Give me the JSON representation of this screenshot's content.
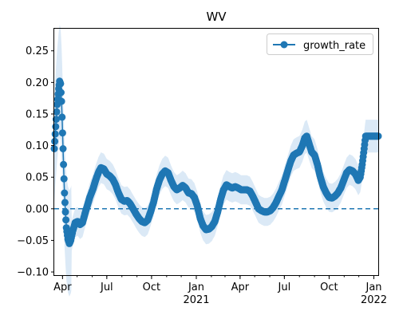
{
  "chart_data": {
    "type": "line",
    "title": "WV",
    "xlabel": "",
    "ylabel": "",
    "x_start": "2020-03-15",
    "x_end": "2022-01-10",
    "ylim": [
      -0.105,
      0.285
    ],
    "y_ticks": [
      -0.1,
      -0.05,
      0.0,
      0.05,
      0.1,
      0.15,
      0.2,
      0.25
    ],
    "y_tick_labels": [
      "−0.10",
      "−0.05",
      "0.00",
      "0.05",
      "0.10",
      "0.15",
      "0.20",
      "0.25"
    ],
    "x_ticks": [
      {
        "date": "2020-04-01",
        "label": "Apr",
        "sublabel": ""
      },
      {
        "date": "2020-07-01",
        "label": "Jul",
        "sublabel": ""
      },
      {
        "date": "2020-10-01",
        "label": "Oct",
        "sublabel": ""
      },
      {
        "date": "2021-01-01",
        "label": "Jan",
        "sublabel": "2021"
      },
      {
        "date": "2021-04-01",
        "label": "Apr",
        "sublabel": ""
      },
      {
        "date": "2021-07-01",
        "label": "Jul",
        "sublabel": ""
      },
      {
        "date": "2021-10-01",
        "label": "Oct",
        "sublabel": ""
      },
      {
        "date": "2022-01-01",
        "label": "Jan",
        "sublabel": "2022"
      }
    ],
    "reference_line": 0.0,
    "legend": {
      "placement": "top-right",
      "label": "growth_rate"
    },
    "colors": {
      "series": "#1f77b4",
      "band": "#cfe2f3",
      "reference": "#1f77b4"
    },
    "series": [
      {
        "name": "growth_rate",
        "points": [
          [
            "2020-03-15",
            0.095
          ],
          [
            "2020-03-18",
            0.13
          ],
          [
            "2020-03-21",
            0.165
          ],
          [
            "2020-03-24",
            0.19
          ],
          [
            "2020-03-26",
            0.202
          ],
          [
            "2020-03-28",
            0.198
          ],
          [
            "2020-03-30",
            0.17
          ],
          [
            "2020-04-01",
            0.12
          ],
          [
            "2020-04-03",
            0.07
          ],
          [
            "2020-04-05",
            0.025
          ],
          [
            "2020-04-07",
            -0.005
          ],
          [
            "2020-04-09",
            -0.03
          ],
          [
            "2020-04-12",
            -0.048
          ],
          [
            "2020-04-15",
            -0.055
          ],
          [
            "2020-04-18",
            -0.05
          ],
          [
            "2020-04-22",
            -0.035
          ],
          [
            "2020-04-27",
            -0.022
          ],
          [
            "2020-05-02",
            -0.02
          ],
          [
            "2020-05-07",
            -0.025
          ],
          [
            "2020-05-12",
            -0.022
          ],
          [
            "2020-05-17",
            -0.008
          ],
          [
            "2020-05-22",
            0.005
          ],
          [
            "2020-05-27",
            0.018
          ],
          [
            "2020-06-02",
            0.03
          ],
          [
            "2020-06-08",
            0.045
          ],
          [
            "2020-06-14",
            0.058
          ],
          [
            "2020-06-19",
            0.065
          ],
          [
            "2020-06-25",
            0.063
          ],
          [
            "2020-07-01",
            0.055
          ],
          [
            "2020-07-07",
            0.052
          ],
          [
            "2020-07-13",
            0.047
          ],
          [
            "2020-07-19",
            0.038
          ],
          [
            "2020-07-25",
            0.025
          ],
          [
            "2020-07-31",
            0.015
          ],
          [
            "2020-08-06",
            0.012
          ],
          [
            "2020-08-12",
            0.013
          ],
          [
            "2020-08-18",
            0.008
          ],
          [
            "2020-08-24",
            0.0
          ],
          [
            "2020-08-30",
            -0.008
          ],
          [
            "2020-09-05",
            -0.015
          ],
          [
            "2020-09-11",
            -0.02
          ],
          [
            "2020-09-17",
            -0.022
          ],
          [
            "2020-09-23",
            -0.018
          ],
          [
            "2020-09-29",
            -0.005
          ],
          [
            "2020-10-05",
            0.01
          ],
          [
            "2020-10-11",
            0.03
          ],
          [
            "2020-10-17",
            0.045
          ],
          [
            "2020-10-23",
            0.055
          ],
          [
            "2020-10-29",
            0.06
          ],
          [
            "2020-11-04",
            0.057
          ],
          [
            "2020-11-10",
            0.045
          ],
          [
            "2020-11-16",
            0.035
          ],
          [
            "2020-11-22",
            0.03
          ],
          [
            "2020-11-28",
            0.033
          ],
          [
            "2020-12-04",
            0.037
          ],
          [
            "2020-12-10",
            0.033
          ],
          [
            "2020-12-16",
            0.025
          ],
          [
            "2020-12-22",
            0.024
          ],
          [
            "2020-12-28",
            0.018
          ],
          [
            "2021-01-03",
            0.005
          ],
          [
            "2021-01-09",
            -0.015
          ],
          [
            "2021-01-15",
            -0.027
          ],
          [
            "2021-01-21",
            -0.033
          ],
          [
            "2021-01-27",
            -0.032
          ],
          [
            "2021-02-02",
            -0.028
          ],
          [
            "2021-02-08",
            -0.02
          ],
          [
            "2021-02-14",
            -0.005
          ],
          [
            "2021-02-20",
            0.015
          ],
          [
            "2021-02-26",
            0.03
          ],
          [
            "2021-03-04",
            0.038
          ],
          [
            "2021-03-10",
            0.035
          ],
          [
            "2021-03-16",
            0.033
          ],
          [
            "2021-03-22",
            0.035
          ],
          [
            "2021-03-28",
            0.033
          ],
          [
            "2021-04-03",
            0.03
          ],
          [
            "2021-04-09",
            0.03
          ],
          [
            "2021-04-15",
            0.03
          ],
          [
            "2021-04-21",
            0.028
          ],
          [
            "2021-04-27",
            0.02
          ],
          [
            "2021-05-03",
            0.01
          ],
          [
            "2021-05-09",
            0.0
          ],
          [
            "2021-05-15",
            -0.003
          ],
          [
            "2021-05-21",
            -0.005
          ],
          [
            "2021-05-27",
            -0.005
          ],
          [
            "2021-06-02",
            -0.003
          ],
          [
            "2021-06-08",
            0.002
          ],
          [
            "2021-06-14",
            0.01
          ],
          [
            "2021-06-20",
            0.02
          ],
          [
            "2021-06-26",
            0.03
          ],
          [
            "2021-07-02",
            0.045
          ],
          [
            "2021-07-08",
            0.06
          ],
          [
            "2021-07-14",
            0.075
          ],
          [
            "2021-07-20",
            0.085
          ],
          [
            "2021-07-26",
            0.088
          ],
          [
            "2021-08-01",
            0.09
          ],
          [
            "2021-08-07",
            0.1
          ],
          [
            "2021-08-12",
            0.112
          ],
          [
            "2021-08-16",
            0.115
          ],
          [
            "2021-08-20",
            0.105
          ],
          [
            "2021-08-26",
            0.09
          ],
          [
            "2021-09-01",
            0.085
          ],
          [
            "2021-09-07",
            0.07
          ],
          [
            "2021-09-13",
            0.05
          ],
          [
            "2021-09-19",
            0.035
          ],
          [
            "2021-09-25",
            0.025
          ],
          [
            "2021-10-01",
            0.018
          ],
          [
            "2021-10-07",
            0.017
          ],
          [
            "2021-10-13",
            0.02
          ],
          [
            "2021-10-19",
            0.025
          ],
          [
            "2021-10-25",
            0.033
          ],
          [
            "2021-10-31",
            0.045
          ],
          [
            "2021-11-06",
            0.057
          ],
          [
            "2021-11-12",
            0.062
          ],
          [
            "2021-11-18",
            0.06
          ],
          [
            "2021-11-24",
            0.055
          ],
          [
            "2021-11-30",
            0.045
          ],
          [
            "2021-12-04",
            0.05
          ],
          [
            "2021-12-08",
            0.07
          ],
          [
            "2021-12-12",
            0.095
          ],
          [
            "2021-12-15",
            0.115
          ],
          [
            "2021-12-22",
            0.115
          ],
          [
            "2021-12-29",
            0.115
          ],
          [
            "2022-01-05",
            0.115
          ],
          [
            "2022-01-10",
            0.115
          ]
        ]
      }
    ]
  }
}
